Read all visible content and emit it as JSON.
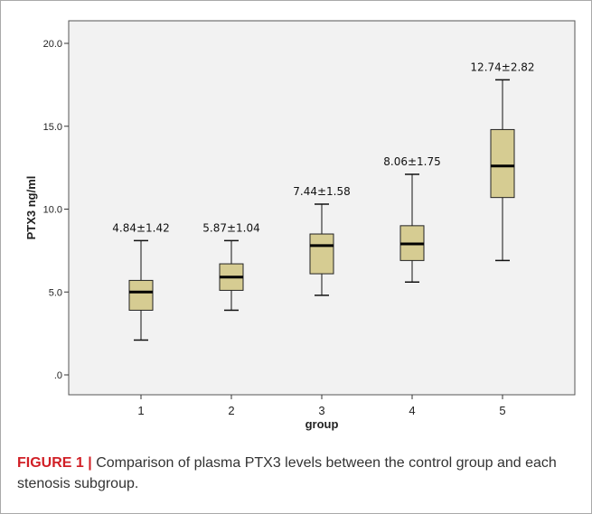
{
  "chart_data": {
    "type": "box",
    "title": "",
    "xlabel": "group",
    "ylabel": "PTX3 ng/ml",
    "ylim": [
      0,
      20
    ],
    "yticks": [
      0,
      5,
      10,
      15,
      20
    ],
    "ytick_labels": [
      ".0",
      "5.0",
      "10.0",
      "15.0",
      "20.0"
    ],
    "categories": [
      "1",
      "2",
      "3",
      "4",
      "5"
    ],
    "boxes": [
      {
        "category": "1",
        "whisker_low": 2.1,
        "q1": 3.9,
        "median": 5.0,
        "q3": 5.7,
        "whisker_high": 8.1,
        "annotation": "4.84±1.42"
      },
      {
        "category": "2",
        "whisker_low": 3.9,
        "q1": 5.1,
        "median": 5.9,
        "q3": 6.7,
        "whisker_high": 8.1,
        "annotation": "5.87±1.04"
      },
      {
        "category": "3",
        "whisker_low": 4.8,
        "q1": 6.1,
        "median": 7.8,
        "q3": 8.5,
        "whisker_high": 10.3,
        "annotation": "7.44±1.58"
      },
      {
        "category": "4",
        "whisker_low": 5.6,
        "q1": 6.9,
        "median": 7.9,
        "q3": 9.0,
        "whisker_high": 12.1,
        "annotation": "8.06±1.75"
      },
      {
        "category": "5",
        "whisker_low": 6.9,
        "q1": 10.7,
        "median": 12.6,
        "q3": 14.8,
        "whisker_high": 17.8,
        "annotation": "12.74±2.82"
      }
    ],
    "box_color": "#d6cc92",
    "plot_background": "#f2f2f2",
    "grid": false,
    "legend": "none"
  },
  "caption": {
    "label": "FIGURE 1",
    "separator": "|",
    "text": "Comparison of plasma PTX3 levels between the control group and each stenosis subgroup."
  }
}
